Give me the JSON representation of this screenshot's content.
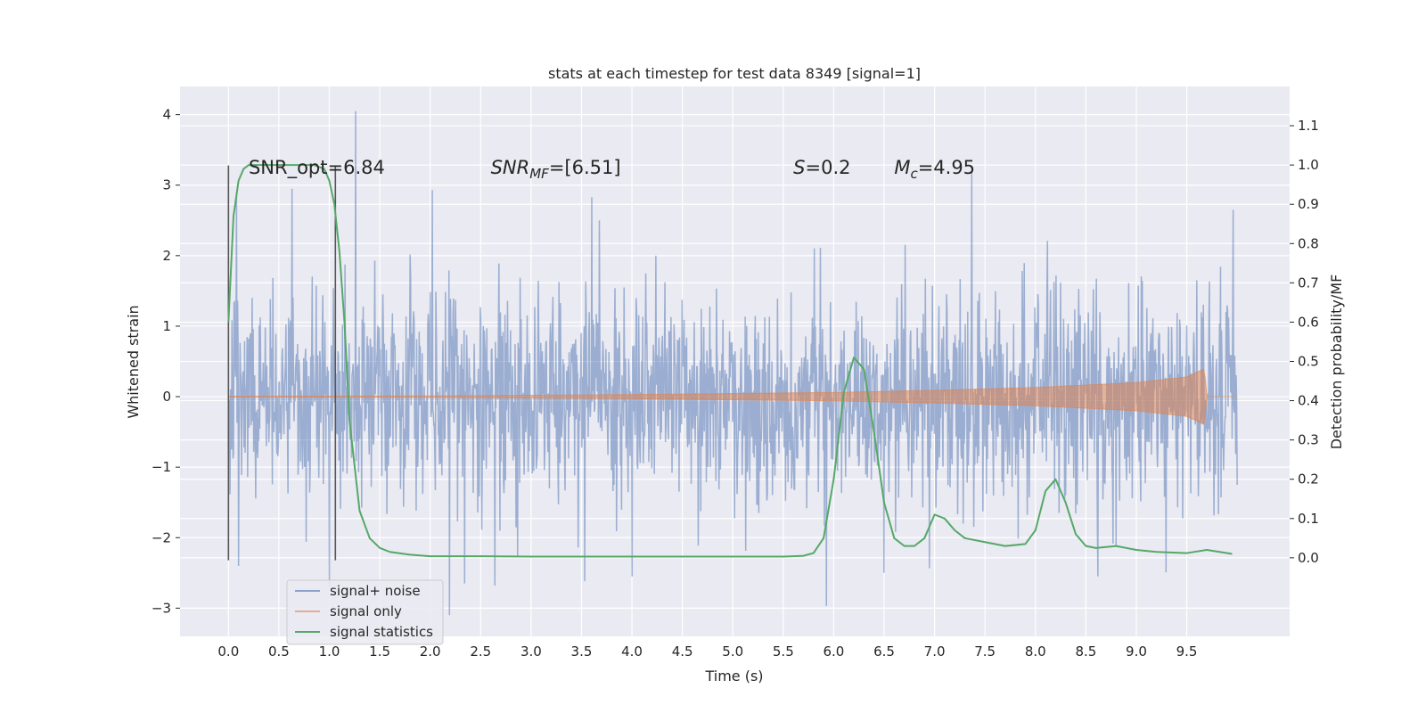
{
  "chart_data": {
    "type": "line",
    "title": "stats at each timestep for test data 8349 [signal=1]",
    "xlabel": "Time (s)",
    "ylabel_left": "Whitened strain",
    "ylabel_right": "Detection probability/MF",
    "xlim": [
      -0.48,
      10.52
    ],
    "ylim_left": [
      -3.4,
      4.4
    ],
    "ylim_right": [
      -0.2,
      1.2
    ],
    "xticks": [
      0.0,
      0.5,
      1.0,
      1.5,
      2.0,
      2.5,
      3.0,
      3.5,
      4.0,
      4.5,
      5.0,
      5.5,
      6.0,
      6.5,
      7.0,
      7.5,
      8.0,
      8.5,
      9.0,
      9.5
    ],
    "xtick_labels": [
      "0.0",
      "0.5",
      "1.0",
      "1.5",
      "2.0",
      "2.5",
      "3.0",
      "3.5",
      "4.0",
      "4.5",
      "5.0",
      "5.5",
      "6.0",
      "6.5",
      "7.0",
      "7.5",
      "8.0",
      "8.5",
      "9.0",
      "9.5"
    ],
    "yticks_left": [
      -3,
      -2,
      -1,
      0,
      1,
      2,
      3,
      4
    ],
    "ytick_labels_left": [
      "−3",
      "−2",
      "−1",
      "0",
      "1",
      "2",
      "3",
      "4"
    ],
    "yticks_right": [
      0.0,
      0.1,
      0.2,
      0.3,
      0.4,
      0.5,
      0.6,
      0.7,
      0.8,
      0.9,
      1.0,
      1.1
    ],
    "ytick_labels_right": [
      "0.0",
      "0.1",
      "0.2",
      "0.3",
      "0.4",
      "0.5",
      "0.6",
      "0.7",
      "0.8",
      "0.9",
      "1.0",
      "1.1"
    ],
    "grid": true,
    "legend_position": "lower-left",
    "annotations": [
      {
        "prefix": "SNR_opt=6.84",
        "sub": "",
        "suffix": "",
        "x": 0.2
      },
      {
        "prefix": "SNR",
        "sub": "MF",
        "suffix": "=[6.51]",
        "x": 2.6
      },
      {
        "prefix": "S",
        "sub": "",
        "suffix": "=0.2",
        "x": 5.6
      },
      {
        "prefix": "M",
        "sub": "c",
        "suffix": "=4.95",
        "x": 6.6
      }
    ],
    "annotation_y_left": 3.25,
    "vlines": [
      0.0,
      1.06
    ],
    "vline_range_left": [
      -2.32,
      3.28
    ],
    "series": [
      {
        "name": "signal+ noise",
        "color": "#4c72b0",
        "axis": "left",
        "t_range": [
          0.0,
          10.0
        ],
        "sigma": 0.75,
        "samples": 2000,
        "peaks": [
          {
            "x": 1.26,
            "y": 4.05
          },
          {
            "x": 0.63,
            "y": 2.95
          },
          {
            "x": 2.02,
            "y": 2.93
          },
          {
            "x": 3.6,
            "y": 2.83
          },
          {
            "x": 7.37,
            "y": 3.18
          },
          {
            "x": 9.96,
            "y": 2.65
          },
          {
            "x": 0.08,
            "y": 2.9
          },
          {
            "x": 2.19,
            "y": -3.1
          },
          {
            "x": 1.0,
            "y": -2.7
          },
          {
            "x": 5.93,
            "y": -2.97
          },
          {
            "x": 2.34,
            "y": -2.65
          },
          {
            "x": 8.62,
            "y": -2.55
          },
          {
            "x": 4.0,
            "y": -2.55
          },
          {
            "x": 0.1,
            "y": -2.4
          },
          {
            "x": 6.5,
            "y": -2.5
          }
        ]
      },
      {
        "name": "signal only",
        "color": "#dd8452",
        "axis": "left",
        "t_range": [
          0.0,
          10.0
        ],
        "envelope_t": [
          0.0,
          2.0,
          4.0,
          6.0,
          7.0,
          8.0,
          9.0,
          9.5,
          9.68,
          9.69,
          10.0
        ],
        "envelope_amp": [
          0.005,
          0.01,
          0.03,
          0.06,
          0.09,
          0.13,
          0.2,
          0.28,
          0.4,
          0.0,
          0.0
        ]
      },
      {
        "name": "signal statistics",
        "color": "#55a868",
        "axis": "right",
        "x": [
          0.0,
          0.05,
          0.1,
          0.15,
          0.2,
          0.3,
          0.5,
          0.7,
          0.85,
          0.95,
          1.0,
          1.05,
          1.1,
          1.15,
          1.2,
          1.3,
          1.4,
          1.5,
          1.6,
          1.8,
          2.0,
          2.5,
          3.0,
          4.0,
          5.0,
          5.5,
          5.7,
          5.8,
          5.9,
          6.0,
          6.1,
          6.2,
          6.3,
          6.4,
          6.5,
          6.6,
          6.7,
          6.8,
          6.9,
          7.0,
          7.1,
          7.2,
          7.3,
          7.5,
          7.7,
          7.9,
          8.0,
          8.1,
          8.2,
          8.3,
          8.4,
          8.5,
          8.6,
          8.8,
          9.0,
          9.2,
          9.5,
          9.7,
          9.95
        ],
        "y": [
          0.6,
          0.87,
          0.96,
          0.99,
          1.0,
          1.0,
          1.0,
          1.0,
          1.0,
          0.99,
          0.96,
          0.9,
          0.78,
          0.6,
          0.35,
          0.12,
          0.05,
          0.025,
          0.015,
          0.008,
          0.004,
          0.004,
          0.003,
          0.003,
          0.003,
          0.003,
          0.005,
          0.012,
          0.05,
          0.2,
          0.42,
          0.51,
          0.48,
          0.32,
          0.14,
          0.05,
          0.03,
          0.03,
          0.05,
          0.11,
          0.1,
          0.07,
          0.05,
          0.04,
          0.03,
          0.035,
          0.07,
          0.17,
          0.2,
          0.14,
          0.06,
          0.03,
          0.025,
          0.03,
          0.02,
          0.015,
          0.012,
          0.02,
          0.01
        ]
      }
    ]
  }
}
